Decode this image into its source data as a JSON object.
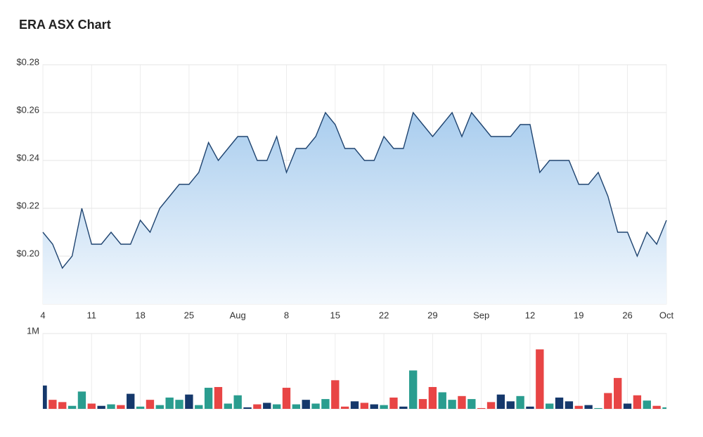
{
  "chart_data": [
    {
      "type": "area",
      "title": "ERA ASX Chart",
      "categories": [
        "4",
        null,
        null,
        null,
        null,
        "11",
        null,
        null,
        null,
        null,
        "18",
        null,
        null,
        null,
        null,
        "25",
        null,
        null,
        null,
        null,
        "Aug",
        null,
        null,
        null,
        null,
        "8",
        null,
        null,
        null,
        null,
        "15",
        null,
        null,
        null,
        null,
        "22",
        null,
        null,
        null,
        null,
        "29",
        null,
        null,
        null,
        null,
        "Sep",
        null,
        null,
        null,
        null,
        "12",
        null,
        null,
        null,
        null,
        "19",
        null,
        null,
        null,
        null,
        "26",
        null,
        null,
        null,
        "Oct"
      ],
      "values": [
        0.21,
        0.205,
        0.195,
        0.2,
        0.22,
        0.205,
        0.205,
        0.21,
        0.205,
        0.205,
        0.215,
        0.21,
        0.22,
        0.225,
        0.23,
        0.23,
        0.235,
        0.2475,
        0.24,
        0.245,
        0.25,
        0.25,
        0.24,
        0.24,
        0.25,
        0.235,
        0.245,
        0.245,
        0.25,
        0.26,
        0.255,
        0.245,
        0.245,
        0.24,
        0.24,
        0.25,
        0.245,
        0.245,
        0.26,
        0.255,
        0.25,
        0.255,
        0.26,
        0.25,
        0.26,
        0.255,
        0.25,
        0.25,
        0.25,
        0.255,
        0.255,
        0.235,
        0.24,
        0.24,
        0.24,
        0.23,
        0.23,
        0.235,
        0.225,
        0.21,
        0.21,
        0.2,
        0.21,
        0.205,
        0.215
      ],
      "color": "#1f4470",
      "ylim": [
        0.18,
        0.28
      ],
      "yticks": [
        {
          "value": 0.2,
          "label": "$0.20"
        },
        {
          "value": 0.22,
          "label": "$0.22"
        },
        {
          "value": 0.24,
          "label": "$0.24"
        },
        {
          "value": 0.26,
          "label": "$0.26"
        },
        {
          "value": 0.28,
          "label": "$0.28"
        }
      ],
      "grid": true
    },
    {
      "type": "bar",
      "values": [
        0.31,
        0.12,
        0.09,
        0.04,
        0.23,
        0.07,
        0.04,
        0.06,
        0.05,
        0.2,
        0.03,
        0.12,
        0.05,
        0.15,
        0.12,
        0.19,
        0.05,
        0.28,
        0.29,
        0.07,
        0.18,
        0.02,
        0.06,
        0.08,
        0.06,
        0.28,
        0.06,
        0.12,
        0.07,
        0.13,
        0.38,
        0.03,
        0.1,
        0.08,
        0.06,
        0.05,
        0.15,
        0.03,
        0.51,
        0.13,
        0.29,
        0.22,
        0.12,
        0.17,
        0.13,
        0.01,
        0.09,
        0.19,
        0.1,
        0.17,
        0.03,
        0.79,
        0.07,
        0.15,
        0.1,
        0.04,
        0.05,
        0.01,
        0.21,
        0.41,
        0.07,
        0.18,
        0.11,
        0.04,
        0.02
      ],
      "colors": [
        "#15386b",
        "#e84545",
        "#e84545",
        "#2a9d8f",
        "#2a9d8f",
        "#e84545",
        "#15386b",
        "#2a9d8f",
        "#e84545",
        "#15386b",
        "#2a9d8f",
        "#e84545",
        "#2a9d8f",
        "#2a9d8f",
        "#2a9d8f",
        "#15386b",
        "#2a9d8f",
        "#2a9d8f",
        "#e84545",
        "#2a9d8f",
        "#2a9d8f",
        "#15386b",
        "#e84545",
        "#15386b",
        "#2a9d8f",
        "#e84545",
        "#2a9d8f",
        "#15386b",
        "#2a9d8f",
        "#2a9d8f",
        "#e84545",
        "#e84545",
        "#15386b",
        "#e84545",
        "#15386b",
        "#2a9d8f",
        "#e84545",
        "#15386b",
        "#2a9d8f",
        "#e84545",
        "#e84545",
        "#2a9d8f",
        "#2a9d8f",
        "#e84545",
        "#2a9d8f",
        "#e84545",
        "#e84545",
        "#15386b",
        "#15386b",
        "#2a9d8f",
        "#15386b",
        "#e84545",
        "#2a9d8f",
        "#15386b",
        "#15386b",
        "#e84545",
        "#15386b",
        "#2a9d8f",
        "#e84545",
        "#e84545",
        "#15386b",
        "#e84545",
        "#2a9d8f",
        "#e84545",
        "#2a9d8f"
      ],
      "ylim": [
        0,
        1
      ],
      "yticks": [
        {
          "value": 1,
          "label": "1M"
        }
      ],
      "grid": true
    }
  ]
}
